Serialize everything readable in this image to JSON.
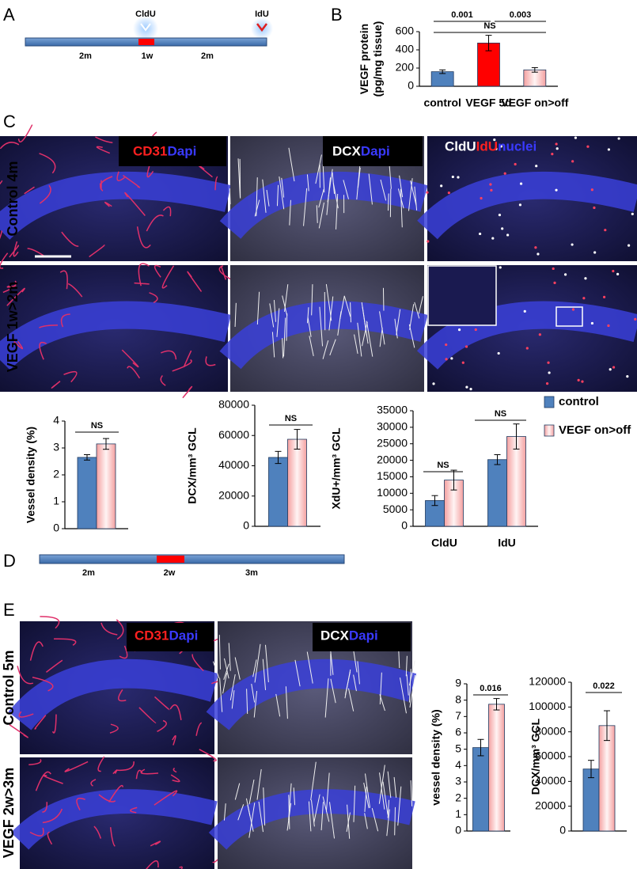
{
  "panel_labels": [
    "A",
    "B",
    "C",
    "D",
    "E"
  ],
  "timeline_a": {
    "markers": [
      "CldU",
      "IdU"
    ],
    "segments": [
      "2m",
      "1w",
      "2m"
    ]
  },
  "timeline_d": {
    "segments": [
      "2m",
      "2w",
      "3m"
    ]
  },
  "micrographs": {
    "panel_c": {
      "rows": [
        "Control 4m",
        "VEGF 1w>2m"
      ],
      "stains": [
        [
          "CD31",
          "Dapi"
        ],
        [
          "DCX",
          "Dapi"
        ],
        [
          "CldU",
          "IdU",
          "nuclei"
        ]
      ]
    },
    "panel_e": {
      "rows": [
        "Control 5m",
        "VEGF 2w>3m"
      ],
      "stains": [
        [
          "CD31",
          "Dapi"
        ],
        [
          "DCX",
          "Dapi"
        ]
      ]
    }
  },
  "chart_data": [
    {
      "type": "bar",
      "ylabel": [
        "VEGF protein",
        "(pg/mg tissue)"
      ],
      "categories": [
        "control",
        "VEGF 5d",
        "VEGF on>off"
      ],
      "values": [
        160,
        475,
        180
      ],
      "errors": [
        20,
        85,
        25
      ],
      "colors": [
        "#4f81bd",
        "#ff0000",
        "#f4a0a0"
      ],
      "ylim": [
        0,
        600
      ],
      "yticks": [
        0,
        200,
        400,
        600
      ],
      "annotations": [
        "0.001",
        "0.003",
        "NS"
      ]
    },
    {
      "type": "bar",
      "ylabel": "Vessel density (%)",
      "series": [
        {
          "color": "#4f81bd",
          "values": [
            2.65
          ],
          "errors": [
            0.1
          ]
        },
        {
          "color": "#f4a0a0",
          "values": [
            3.15
          ],
          "errors": [
            0.2
          ]
        }
      ],
      "ylim": [
        0,
        4
      ],
      "yticks": [
        0,
        1,
        2,
        3,
        4
      ],
      "annotations": [
        "NS"
      ]
    },
    {
      "type": "bar",
      "ylabel": "DCX/mm³ GCL",
      "series": [
        {
          "color": "#4f81bd",
          "values": [
            45500
          ],
          "errors": [
            4000
          ]
        },
        {
          "color": "#f4a0a0",
          "values": [
            57500
          ],
          "errors": [
            6500
          ]
        }
      ],
      "ylim": [
        0,
        80000
      ],
      "yticks": [
        0,
        20000,
        40000,
        60000,
        80000
      ],
      "annotations": [
        "NS"
      ]
    },
    {
      "type": "bar",
      "ylabel": "XdU+/mm³ GCL",
      "categories": [
        "CldU",
        "IdU"
      ],
      "series": [
        {
          "name": "control",
          "color": "#4f81bd",
          "values": [
            7800,
            20200
          ],
          "errors": [
            1500,
            1500
          ]
        },
        {
          "name": "VEGF on>off",
          "color": "#f4a0a0",
          "values": [
            14000,
            27200
          ],
          "errors": [
            3000,
            3800
          ]
        }
      ],
      "ylim": [
        0,
        35000
      ],
      "yticks": [
        0,
        5000,
        10000,
        15000,
        20000,
        25000,
        30000,
        35000
      ],
      "annotations": [
        "NS",
        "NS"
      ],
      "legend": "right"
    },
    {
      "type": "bar",
      "ylabel": "vessel density (%)",
      "series": [
        {
          "color": "#4f81bd",
          "values": [
            5.1
          ],
          "errors": [
            0.5
          ]
        },
        {
          "color": "#f4a0a0",
          "values": [
            7.75
          ],
          "errors": [
            0.35
          ]
        }
      ],
      "ylim": [
        0,
        9
      ],
      "yticks": [
        0,
        1,
        2,
        3,
        4,
        5,
        6,
        7,
        8,
        9
      ],
      "annotations": [
        "0.016"
      ]
    },
    {
      "type": "bar",
      "ylabel": "DCX/mm³ GCL",
      "series": [
        {
          "color": "#4f81bd",
          "values": [
            50000
          ],
          "errors": [
            7000
          ]
        },
        {
          "color": "#f4a0a0",
          "values": [
            85000
          ],
          "errors": [
            12000
          ]
        }
      ],
      "ylim": [
        0,
        120000
      ],
      "yticks": [
        0,
        20000,
        40000,
        60000,
        80000,
        100000,
        120000
      ],
      "annotations": [
        "0.022"
      ]
    }
  ]
}
